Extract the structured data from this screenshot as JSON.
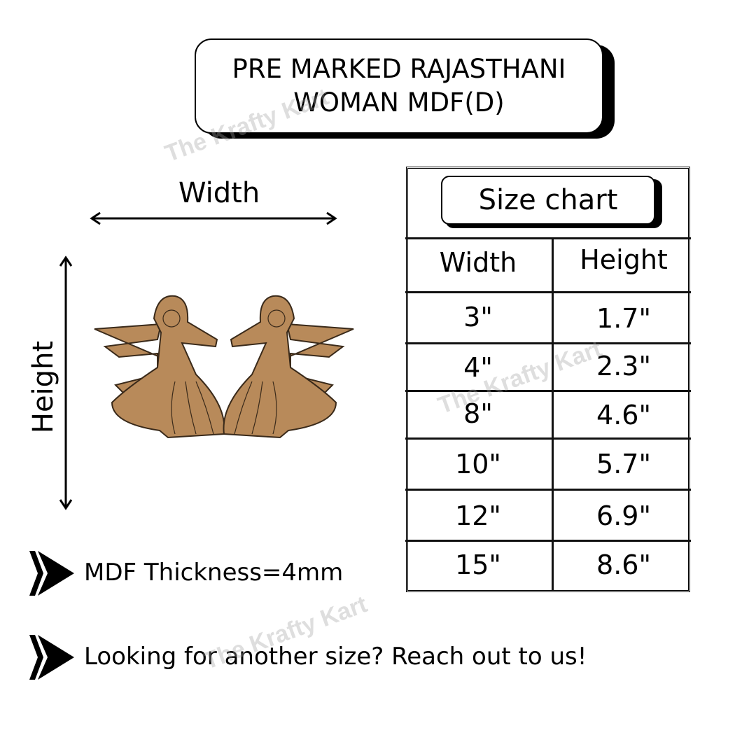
{
  "title": "PRE MARKED RAJASTHANI WOMAN MDF(D)",
  "title_lines": [
    "PRE MARKED RAJASTHANI",
    "WOMAN MDF(D)"
  ],
  "watermark": "The Krafty Kart",
  "dimension_labels": {
    "width": "Width",
    "height": "Height"
  },
  "size_chart": {
    "title": "Size chart",
    "columns": [
      "Width",
      "Height"
    ],
    "rows": [
      [
        "3\"",
        "1.7\""
      ],
      [
        "4\"",
        "2.3\""
      ],
      [
        "8\"",
        "4.6\""
      ],
      [
        "10\"",
        "5.7\""
      ],
      [
        "12\"",
        "6.9\""
      ],
      [
        "15\"",
        "8.6\""
      ]
    ]
  },
  "bullets": [
    {
      "icon": "double-chevron-arrow-icon",
      "text": "MDF Thickness=4mm"
    },
    {
      "icon": "double-chevron-arrow-icon",
      "text": "Looking for another size? Reach out to us!"
    }
  ],
  "colors": {
    "mdf": "#b88a5a",
    "line": "#000000"
  }
}
